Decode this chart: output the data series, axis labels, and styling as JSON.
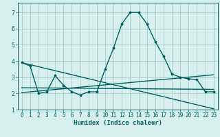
{
  "xlabel": "Humidex (Indice chaleur)",
  "background_color": "#d5f0ed",
  "grid_color": "#aacfcc",
  "line_color": "#006060",
  "xlim": [
    -0.5,
    23.5
  ],
  "ylim": [
    1.0,
    7.6
  ],
  "yticks": [
    1,
    2,
    3,
    4,
    5,
    6,
    7
  ],
  "xticks": [
    0,
    1,
    2,
    3,
    4,
    5,
    6,
    7,
    8,
    9,
    10,
    11,
    12,
    13,
    14,
    15,
    16,
    17,
    18,
    19,
    20,
    21,
    22,
    23
  ],
  "series1_x": [
    0,
    1,
    2,
    3,
    4,
    5,
    6,
    7,
    8,
    9,
    10,
    11,
    12,
    13,
    14,
    15,
    16,
    17,
    18,
    19,
    20,
    21,
    22,
    23
  ],
  "series1_y": [
    3.9,
    3.7,
    2.0,
    2.1,
    3.1,
    2.5,
    2.1,
    1.9,
    2.1,
    2.1,
    3.5,
    4.8,
    6.3,
    7.0,
    7.0,
    6.3,
    5.2,
    4.3,
    3.2,
    3.0,
    2.9,
    2.85,
    2.1,
    2.1
  ],
  "trend1_x": [
    0,
    23
  ],
  "trend1_y": [
    2.05,
    3.15
  ],
  "trend2_x": [
    0,
    23
  ],
  "trend2_y": [
    3.9,
    1.05
  ],
  "trend3_x": [
    0,
    23
  ],
  "trend3_y": [
    2.35,
    2.25
  ],
  "xlabel_fontsize": 6.5,
  "tick_fontsize": 5.5,
  "line_width": 1.0,
  "marker_size": 2.5
}
